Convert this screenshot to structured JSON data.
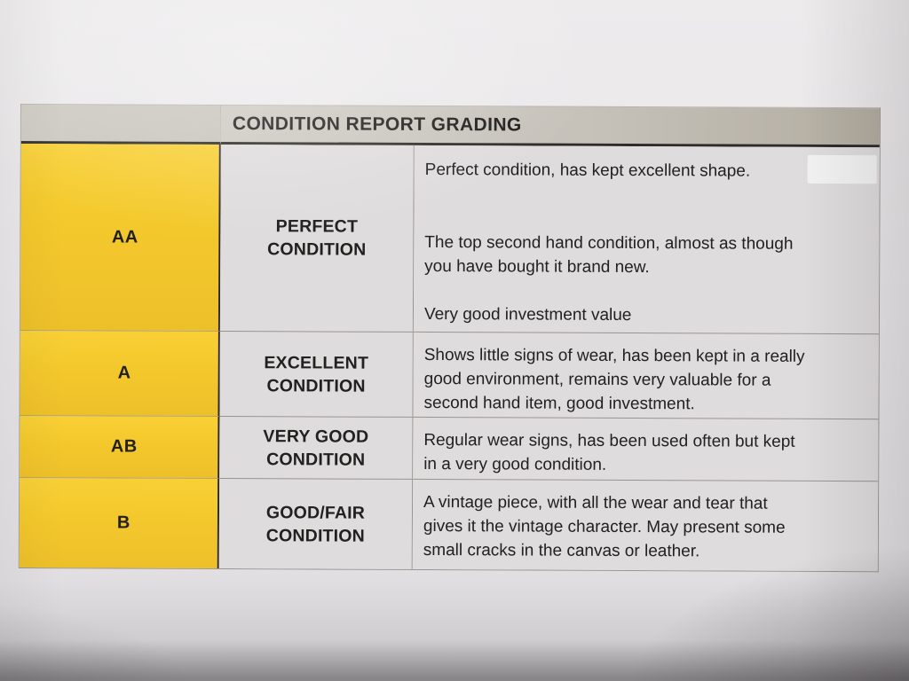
{
  "document": {
    "title": "CONDITION REPORT GRADING",
    "rows": [
      {
        "grade": "AA",
        "label": "PERFECT\nCONDITION",
        "paragraphs": [
          "Perfect condition, has kept excellent shape.",
          "The top second hand condition, almost as though\nyou have bought it brand new.",
          "Very good investment value"
        ]
      },
      {
        "grade": "A",
        "label": "EXCELLENT\nCONDITION",
        "paragraphs": [
          "Shows little signs of wear, has been kept in a really\ngood environment, remains very valuable for a\nsecond hand item, good investment."
        ]
      },
      {
        "grade": "AB",
        "label": "VERY GOOD\nCONDITION",
        "paragraphs": [
          "Regular wear signs, has been used often but kept\nin a very good condition."
        ]
      },
      {
        "grade": "B",
        "label": "GOOD/FAIR\nCONDITION",
        "paragraphs": [
          "A vintage piece, with all the wear and tear that\ngives it the vintage character. May present some\nsmall cracks in the canvas or leather."
        ]
      }
    ],
    "colors": {
      "grade_column_yellow": "#F3C82C",
      "header_bar_gray": "#C6C2BA",
      "cell_background": "#DFDCDD",
      "text": "#232120"
    }
  }
}
